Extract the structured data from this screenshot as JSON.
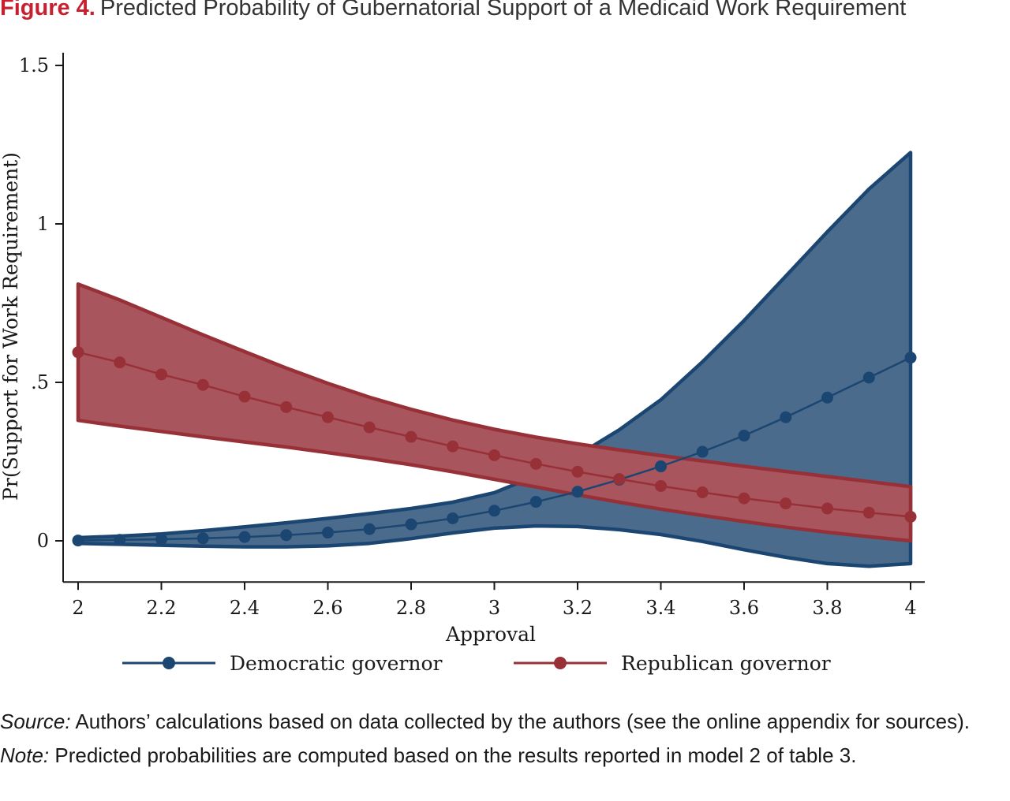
{
  "figure": {
    "label": "Figure 4.",
    "title": "Predicted Probability of Gubernatorial Support of a Medicaid Work Requirement"
  },
  "chart_data": {
    "type": "line",
    "xlabel": "Approval",
    "ylabel": "Pr(Support for Work Requirement)",
    "xlim": [
      2,
      4
    ],
    "ylim": [
      -0.13,
      1.54
    ],
    "x_ticks": [
      2,
      2.2,
      2.4,
      2.6,
      2.8,
      3,
      3.2,
      3.4,
      3.6,
      3.8,
      4
    ],
    "x_tick_labels": [
      "2",
      "2.2",
      "2.4",
      "2.6",
      "2.8",
      "3",
      "3.2",
      "3.4",
      "3.6",
      "3.8",
      "4"
    ],
    "y_ticks": [
      0,
      0.5,
      1,
      1.5
    ],
    "y_tick_labels": [
      "0",
      ".5",
      "1",
      "1.5"
    ],
    "grid": false,
    "legend_position": "bottom",
    "x": [
      2.0,
      2.1,
      2.2,
      2.3,
      2.4,
      2.5,
      2.6,
      2.7,
      2.8,
      2.9,
      3.0,
      3.1,
      3.2,
      3.3,
      3.4,
      3.5,
      3.6,
      3.7,
      3.8,
      3.9,
      4.0
    ],
    "series": [
      {
        "name": "Democratic governor",
        "color": "#1b4671",
        "band_fill": "#4a6b8c",
        "values": [
          0.001,
          0.003,
          0.005,
          0.008,
          0.012,
          0.018,
          0.026,
          0.037,
          0.052,
          0.071,
          0.095,
          0.123,
          0.155,
          0.193,
          0.235,
          0.281,
          0.332,
          0.39,
          0.452,
          0.515,
          0.578
        ],
        "ci_upper": [
          0.01,
          0.015,
          0.022,
          0.032,
          0.044,
          0.057,
          0.071,
          0.086,
          0.102,
          0.122,
          0.152,
          0.205,
          0.27,
          0.35,
          0.445,
          0.565,
          0.695,
          0.835,
          0.975,
          1.11,
          1.225
        ],
        "ci_lower": [
          -0.008,
          -0.011,
          -0.014,
          -0.017,
          -0.019,
          -0.019,
          -0.016,
          -0.008,
          0.007,
          0.025,
          0.04,
          0.047,
          0.045,
          0.035,
          0.02,
          -0.002,
          -0.028,
          -0.052,
          -0.072,
          -0.08,
          -0.072
        ]
      },
      {
        "name": "Republican governor",
        "color": "#983038",
        "band_fill": "#a9555d",
        "values": [
          0.595,
          0.563,
          0.525,
          0.492,
          0.455,
          0.422,
          0.39,
          0.358,
          0.328,
          0.298,
          0.27,
          0.243,
          0.218,
          0.195,
          0.173,
          0.153,
          0.134,
          0.118,
          0.102,
          0.089,
          0.076
        ],
        "ci_upper": [
          0.81,
          0.76,
          0.705,
          0.65,
          0.597,
          0.545,
          0.497,
          0.453,
          0.415,
          0.381,
          0.352,
          0.327,
          0.306,
          0.287,
          0.269,
          0.252,
          0.235,
          0.219,
          0.203,
          0.187,
          0.171
        ],
        "ci_lower": [
          0.38,
          0.362,
          0.345,
          0.328,
          0.312,
          0.296,
          0.278,
          0.26,
          0.24,
          0.218,
          0.194,
          0.17,
          0.145,
          0.122,
          0.1,
          0.08,
          0.061,
          0.043,
          0.027,
          0.013,
          0.0
        ]
      }
    ]
  },
  "notes": {
    "source_label": "Source:",
    "source_text": " Authors’ calculations based on data collected by the authors (see the online appendix for sources).",
    "note_label": "Note:",
    "note_text": " Predicted probabilities are computed based on the results reported in model 2 of table 3."
  }
}
